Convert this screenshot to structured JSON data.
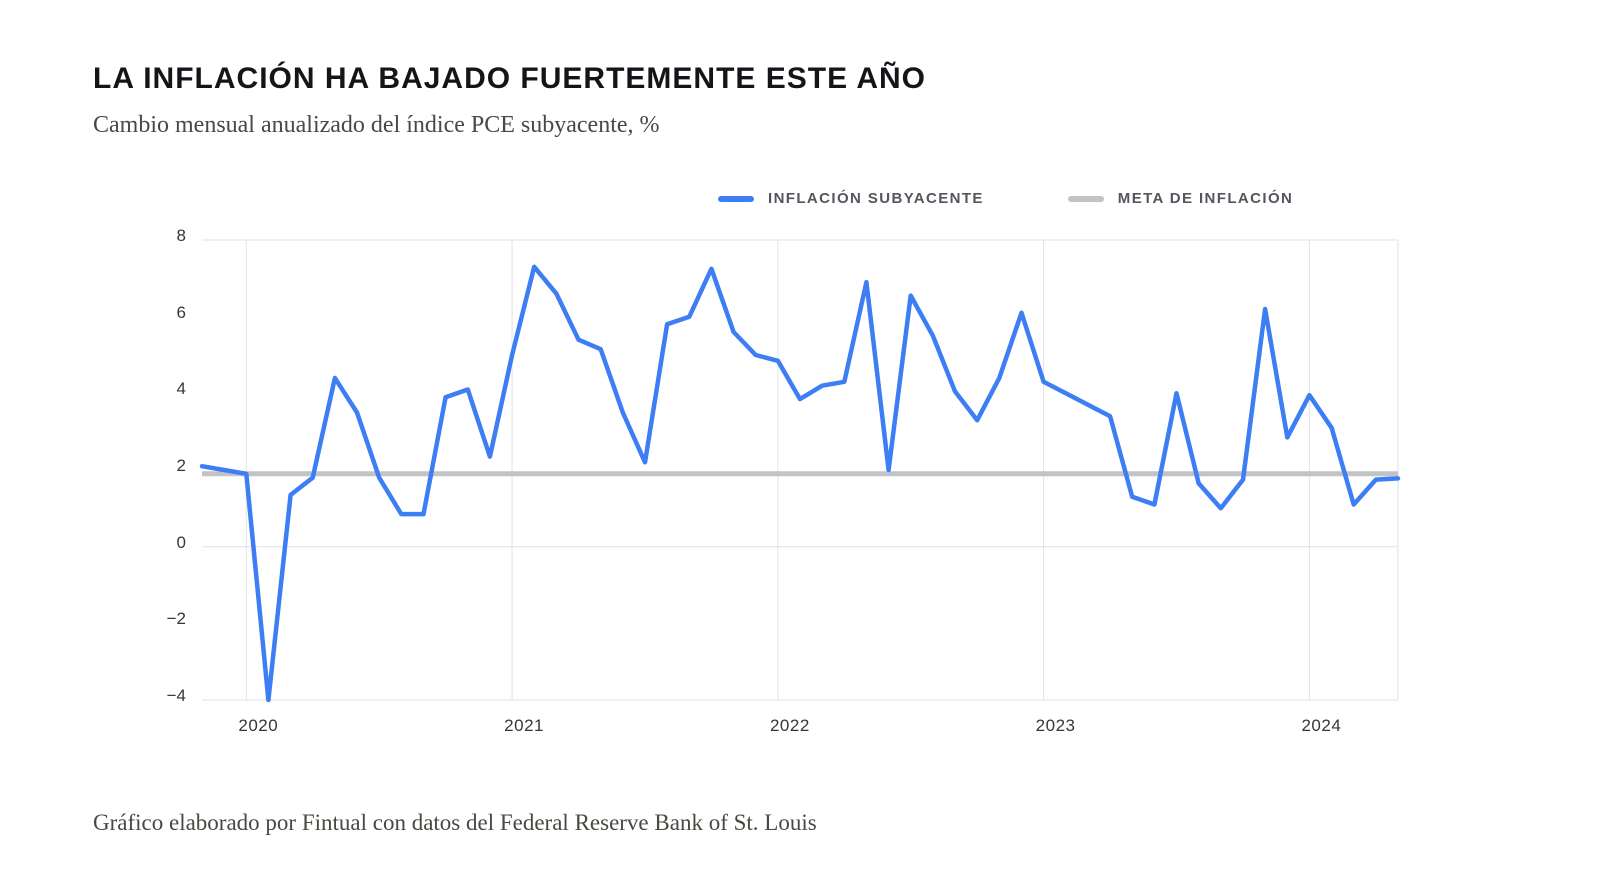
{
  "page": {
    "title": "LA INFLACIÓN HA BAJADO FUERTEMENTE ESTE AÑO",
    "subtitle": "Cambio mensual anualizado del índice PCE subyacente, %",
    "footer": "Gráfico elaborado por Fintual con datos del Federal Reserve Bank of St. Louis"
  },
  "legend": [
    {
      "label": "INFLACIÓN SUBYACENTE",
      "color": "#3d7ef5"
    },
    {
      "label": "META DE INFLACIÓN",
      "color": "#c3c3c7"
    }
  ],
  "colors": {
    "accent_blue": "#3d7ef5",
    "target_gray": "#c3c3c7",
    "gridline": "#e2e2e6",
    "tick_text": "#36363b"
  },
  "chart_data": {
    "type": "line",
    "title": "LA INFLACIÓN HA BAJADO FUERTEMENTE ESTE AÑO",
    "subtitle": "Cambio mensual anualizado del índice PCE subyacente, %",
    "xlabel": "",
    "ylabel": "",
    "ylim": [
      -4,
      8
    ],
    "y_ticks": [
      8,
      6,
      4,
      2,
      0,
      -2,
      -4
    ],
    "y_tick_labels": [
      "8",
      "6",
      "4",
      "2",
      "0",
      "−2",
      "−4"
    ],
    "x_year_ticks": [
      2020,
      2021,
      2022,
      2023,
      2024
    ],
    "start_month": "2019-11",
    "grid": {
      "horizontal_at": [
        8,
        0,
        -4
      ],
      "vertical_at_year_starts": true
    },
    "legend_position": "top-right",
    "months": [
      "2019-11",
      "2019-12",
      "2020-01",
      "2020-02",
      "2020-03",
      "2020-04",
      "2020-05",
      "2020-06",
      "2020-07",
      "2020-08",
      "2020-09",
      "2020-10",
      "2020-11",
      "2020-12",
      "2021-01",
      "2021-02",
      "2021-03",
      "2021-04",
      "2021-05",
      "2021-06",
      "2021-07",
      "2021-08",
      "2021-09",
      "2021-10",
      "2021-11",
      "2021-12",
      "2022-01",
      "2022-02",
      "2022-03",
      "2022-04",
      "2022-05",
      "2022-06",
      "2022-07",
      "2022-08",
      "2022-09",
      "2022-10",
      "2022-11",
      "2022-12",
      "2023-01",
      "2023-02",
      "2023-03",
      "2023-04",
      "2023-05",
      "2023-06",
      "2023-07",
      "2023-08",
      "2023-09",
      "2023-10",
      "2023-11",
      "2023-12",
      "2024-01",
      "2024-02",
      "2024-03",
      "2024-04",
      "2024-05"
    ],
    "series": [
      {
        "name": "Inflación subyacente",
        "type": "line",
        "color": "#3d7ef5",
        "values": [
          2.1,
          2.0,
          1.9,
          -4.0,
          1.35,
          1.8,
          4.4,
          3.5,
          1.8,
          0.85,
          0.85,
          3.9,
          4.1,
          2.35,
          5.0,
          7.3,
          6.6,
          5.4,
          5.15,
          3.5,
          2.2,
          5.8,
          6.0,
          7.25,
          5.6,
          5.0,
          4.85,
          3.85,
          4.2,
          4.3,
          6.9,
          2.0,
          6.55,
          5.5,
          4.05,
          3.3,
          4.4,
          6.1,
          4.3,
          4.0,
          3.7,
          3.4,
          1.3,
          1.1,
          4.0,
          1.65,
          1.0,
          1.75,
          6.2,
          2.85,
          3.95,
          3.1,
          1.1,
          1.75,
          1.78
        ]
      },
      {
        "name": "Meta de inflación",
        "type": "constant-line",
        "color": "#c3c3c7",
        "value": 1.9
      }
    ]
  }
}
